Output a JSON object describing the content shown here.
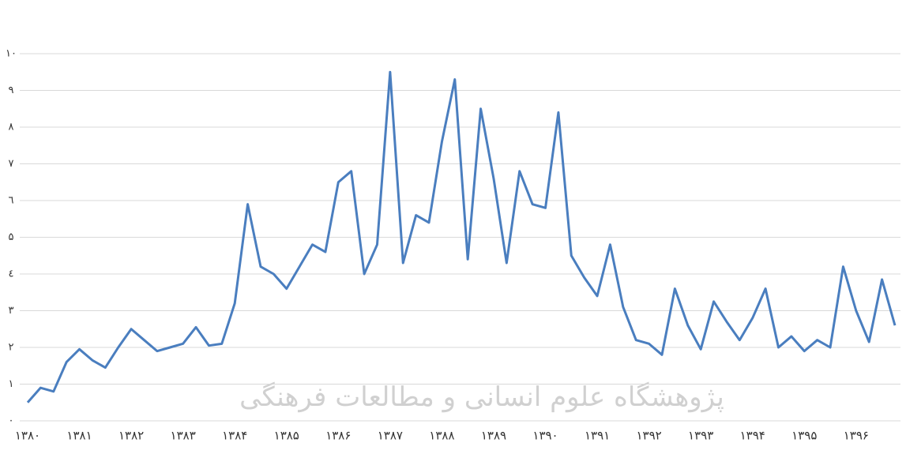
{
  "watermark": "پژوهشگاه علوم انسانی و مطالعات فرهنگی",
  "chart_data": {
    "type": "line",
    "categories": [
      "۱۳۸۰",
      null,
      null,
      null,
      "۱۳۸۱",
      null,
      null,
      null,
      "۱۳۸۲",
      null,
      null,
      null,
      "۱۳۸۳",
      null,
      null,
      null,
      "۱۳۸۴",
      null,
      null,
      null,
      "۱۳۸۵",
      null,
      null,
      null,
      "۱۳۸۶",
      null,
      null,
      null,
      "۱۳۸۷",
      null,
      null,
      null,
      "۱۳۸۸",
      null,
      null,
      null,
      "۱۳۸۹",
      null,
      null,
      null,
      "۱۳۹۰",
      null,
      null,
      null,
      "۱۳۹۱",
      null,
      null,
      null,
      "۱۳۹۲",
      null,
      null,
      null,
      "۱۳۹۳",
      null,
      null,
      null,
      "۱۳۹۴",
      null,
      null,
      null,
      "۱۳۹۵",
      null,
      null,
      null,
      "۱۳۹۶",
      null,
      null,
      null
    ],
    "series": [
      {
        "color": "#4a7ebf",
        "values": [
          0.5,
          0.9,
          0.8,
          1.6,
          1.95,
          1.65,
          1.45,
          2.0,
          2.5,
          2.2,
          1.9,
          2.0,
          2.1,
          2.55,
          2.05,
          2.1,
          3.2,
          5.9,
          4.2,
          4.0,
          3.6,
          4.2,
          4.8,
          4.6,
          6.5,
          6.8,
          4.0,
          4.8,
          9.5,
          4.3,
          5.6,
          5.4,
          7.6,
          9.3,
          4.4,
          8.5,
          6.6,
          4.3,
          6.8,
          5.9,
          5.8,
          8.4,
          4.5,
          3.9,
          3.4,
          4.8,
          3.1,
          2.2,
          2.1,
          1.8,
          3.6,
          2.6,
          1.95,
          3.25,
          2.7,
          2.2,
          2.8,
          3.6,
          2.0,
          2.3,
          1.9,
          2.2,
          2.0,
          4.2,
          3.0,
          2.15,
          3.85,
          2.6
        ]
      }
    ],
    "ylim": [
      0,
      10
    ],
    "yticks": [
      {
        "value": 0,
        "label": "۰"
      },
      {
        "value": 1,
        "label": "۱"
      },
      {
        "value": 2,
        "label": "۲"
      },
      {
        "value": 3,
        "label": "۳"
      },
      {
        "value": 4,
        "label": "٤"
      },
      {
        "value": 5,
        "label": "۵"
      },
      {
        "value": 6,
        "label": "٦"
      },
      {
        "value": 7,
        "label": "۷"
      },
      {
        "value": 8,
        "label": "۸"
      },
      {
        "value": 9,
        "label": "۹"
      },
      {
        "value": 10,
        "label": "۱۰"
      }
    ],
    "grid": true
  }
}
